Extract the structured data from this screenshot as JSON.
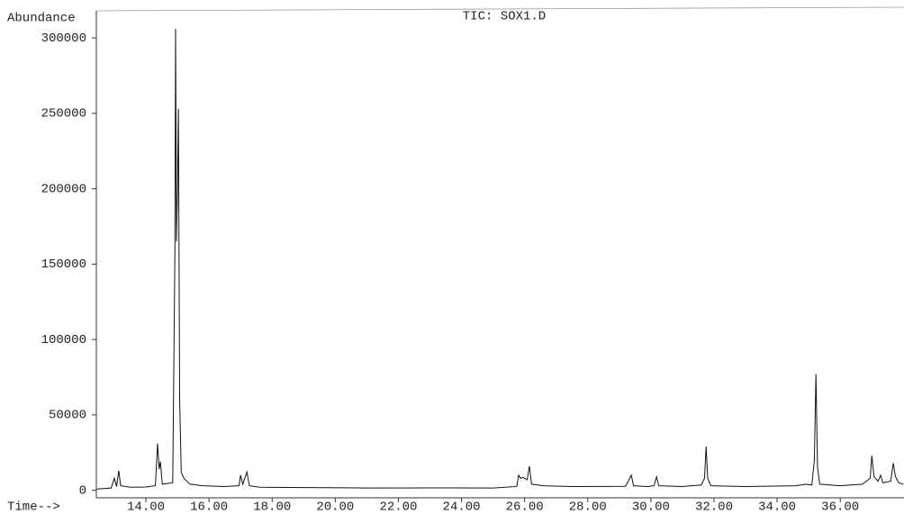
{
  "chart_data": {
    "type": "line",
    "title": "TIC: SOX1.D",
    "y_label": "Abundance",
    "x_label": "Time-->",
    "color": "#111111",
    "x": [
      12.45,
      12.9,
      13.0,
      13.07,
      13.14,
      13.2,
      13.5,
      14.0,
      14.3,
      14.37,
      14.42,
      14.46,
      14.52,
      14.85,
      14.92,
      14.94,
      14.97,
      15.0,
      15.03,
      15.07,
      15.12,
      15.2,
      15.4,
      15.8,
      16.5,
      16.95,
      17.0,
      17.07,
      17.2,
      17.28,
      17.6,
      19.0,
      21.0,
      23.0,
      25.0,
      25.75,
      25.81,
      25.87,
      25.95,
      26.08,
      26.15,
      26.22,
      26.6,
      27.5,
      29.2,
      29.38,
      29.45,
      29.9,
      30.1,
      30.18,
      30.25,
      31.0,
      31.6,
      31.7,
      31.75,
      31.8,
      31.9,
      33.0,
      34.6,
      34.9,
      35.1,
      35.18,
      35.23,
      35.28,
      35.35,
      36.0,
      36.7,
      36.95,
      37.0,
      37.07,
      37.2,
      37.28,
      37.35,
      37.6,
      37.68,
      37.75,
      37.85,
      38.0
    ],
    "values": [
      800,
      1500,
      8000,
      2500,
      13000,
      3000,
      2000,
      2200,
      3000,
      31000,
      14000,
      19000,
      4000,
      5000,
      160000,
      306000,
      165000,
      200000,
      253000,
      60000,
      12000,
      8000,
      4000,
      3000,
      2500,
      3000,
      10000,
      4000,
      12000,
      3000,
      2000,
      1800,
      1500,
      1600,
      1500,
      2500,
      10000,
      8000,
      8500,
      7000,
      16000,
      4000,
      3000,
      2500,
      2600,
      10000,
      3000,
      2500,
      3000,
      9000,
      3000,
      2500,
      3500,
      8000,
      29000,
      8000,
      3000,
      2500,
      3000,
      4000,
      3500,
      20000,
      77000,
      15000,
      4000,
      3000,
      4000,
      8000,
      23000,
      9000,
      6000,
      10000,
      5000,
      6000,
      18000,
      9000,
      5000,
      4000
    ],
    "xlim": [
      12.43,
      38.02
    ],
    "ylim": [
      -5000,
      318000
    ],
    "yticks": [
      0,
      50000,
      100000,
      150000,
      200000,
      250000,
      300000
    ],
    "xticks": [
      {
        "value": 14,
        "label": "14.00"
      },
      {
        "value": 16,
        "label": "16.00"
      },
      {
        "value": 18,
        "label": "18.00"
      },
      {
        "value": 20,
        "label": "20.00"
      },
      {
        "value": 22,
        "label": "22.00"
      },
      {
        "value": 24,
        "label": "24.00"
      },
      {
        "value": 26,
        "label": "26.00"
      },
      {
        "value": 28,
        "label": "28.00"
      },
      {
        "value": 30,
        "label": "30.00"
      },
      {
        "value": 32,
        "label": "32.00"
      },
      {
        "value": 34,
        "label": "34.00"
      },
      {
        "value": 36,
        "label": "36.00"
      }
    ]
  }
}
